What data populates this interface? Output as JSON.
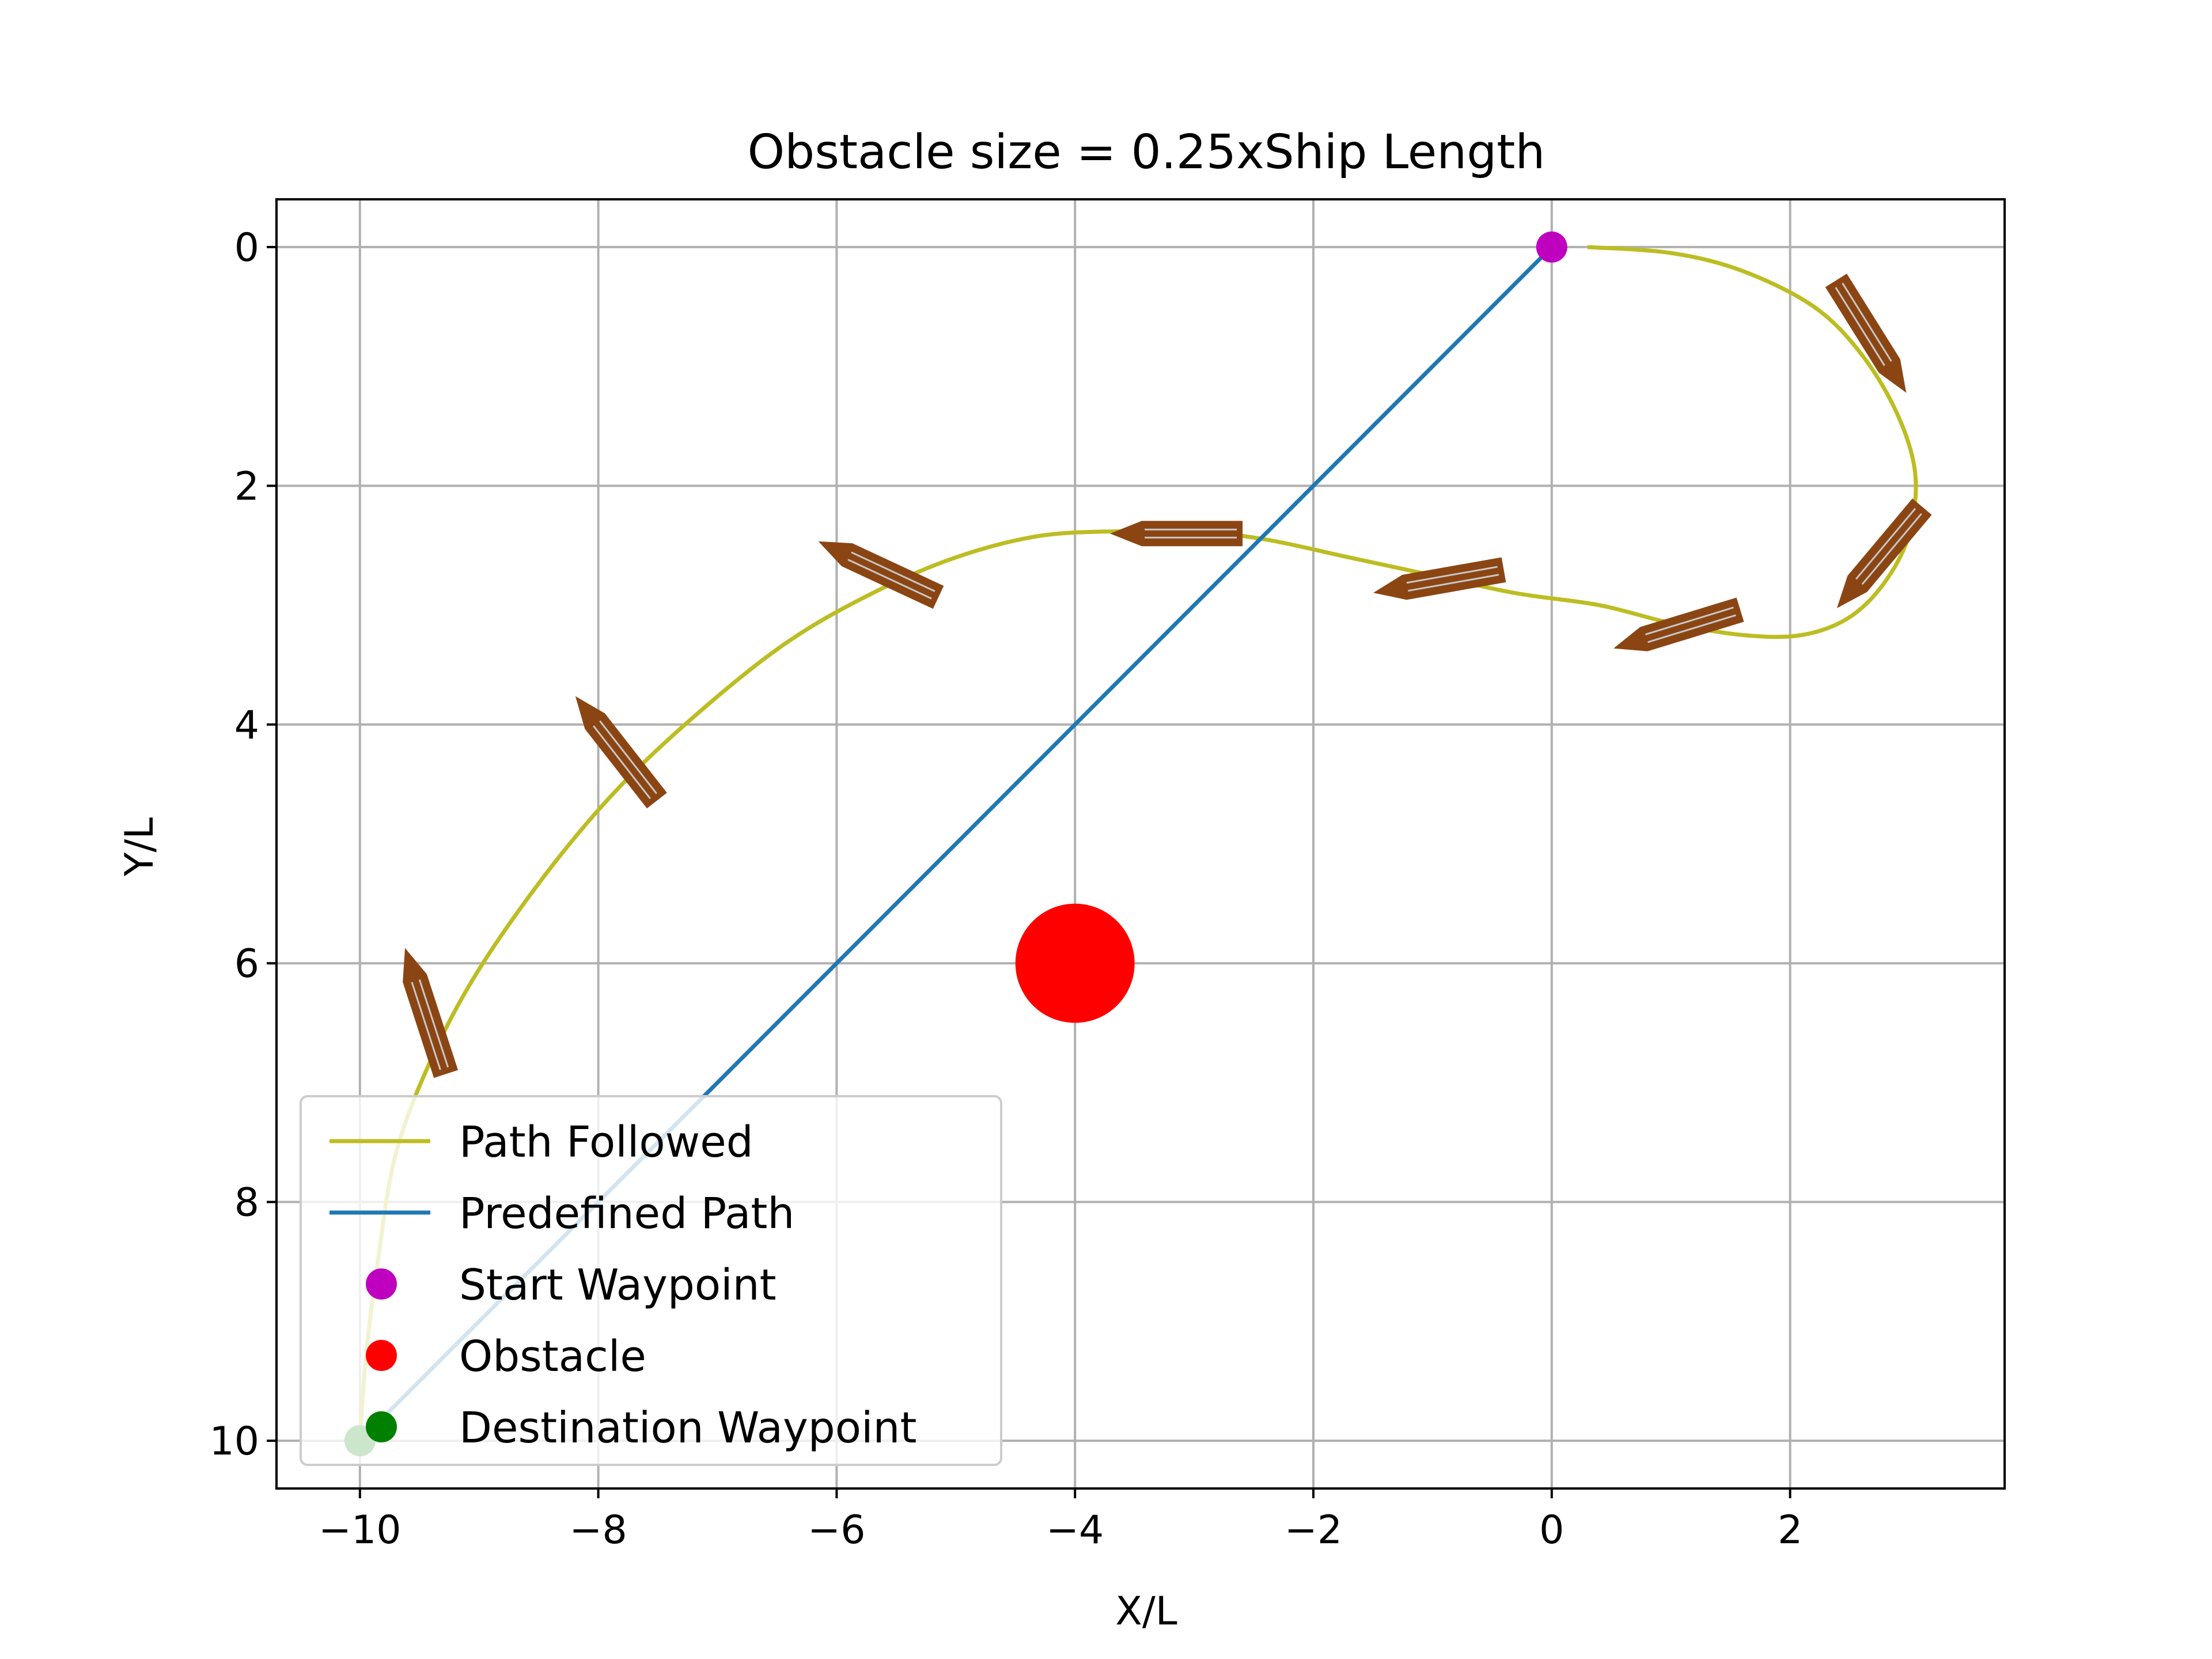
{
  "chart_data": {
    "type": "line",
    "title": "Obstacle size = 0.25xShip Length",
    "xlabel": "X/L",
    "ylabel": "Y/L",
    "xlim": [
      -10.7,
      3.8
    ],
    "ylim": [
      10.4,
      -0.4
    ],
    "y_inverted": true,
    "grid": true,
    "legend_position": "lower-left",
    "xticks": [
      -10,
      -8,
      -6,
      -4,
      -2,
      0,
      2
    ],
    "xtick_labels": [
      "−10",
      "−8",
      "−6",
      "−4",
      "−2",
      "0",
      "2"
    ],
    "yticks": [
      0,
      2,
      4,
      6,
      8,
      10
    ],
    "ytick_labels": [
      "0",
      "2",
      "4",
      "6",
      "8",
      "10"
    ],
    "colors": {
      "path_followed": "#bcbd22",
      "predefined_path": "#1f77b4",
      "start": "#bf00bf",
      "obstacle": "#ff0000",
      "destination": "#008000",
      "ship_fill": "#8b4513",
      "ship_line": "#c8c8c8",
      "grid": "#b0b0b0"
    },
    "series": [
      {
        "name": "Path Followed",
        "style": "line",
        "color": "#bcbd22",
        "x": [
          0.3,
          1.0,
          1.6,
          2.2,
          2.6,
          2.9,
          3.05,
          3.0,
          2.8,
          2.5,
          2.1,
          1.6,
          1.0,
          0.4,
          -0.3,
          -1.0,
          -1.7,
          -2.4,
          -3.0,
          -3.6,
          -4.3,
          -5.0,
          -5.7,
          -6.4,
          -7.1,
          -7.8,
          -8.4,
          -9.0,
          -9.4,
          -9.7,
          -9.85,
          -9.95,
          -10.0
        ],
        "y": [
          0.0,
          0.05,
          0.2,
          0.5,
          0.9,
          1.4,
          1.9,
          2.4,
          2.8,
          3.1,
          3.25,
          3.25,
          3.15,
          3.0,
          2.9,
          2.75,
          2.6,
          2.45,
          2.38,
          2.38,
          2.42,
          2.6,
          2.9,
          3.3,
          3.85,
          4.5,
          5.2,
          6.05,
          6.8,
          7.6,
          8.5,
          9.3,
          10.0
        ]
      },
      {
        "name": "Predefined Path",
        "style": "line",
        "color": "#1f77b4",
        "x": [
          0,
          -10
        ],
        "y": [
          0,
          10
        ]
      },
      {
        "name": "Start Waypoint",
        "style": "marker",
        "color": "#bf00bf",
        "x": [
          0
        ],
        "y": [
          0
        ]
      },
      {
        "name": "Obstacle",
        "style": "marker",
        "color": "#ff0000",
        "x": [
          -4
        ],
        "y": [
          6
        ],
        "radius": 0.5
      },
      {
        "name": "Destination Waypoint",
        "style": "marker",
        "color": "#008000",
        "x": [
          -10
        ],
        "y": [
          10
        ]
      }
    ],
    "ships": [
      {
        "x": 2.68,
        "y": 0.75,
        "heading_deg": 58
      },
      {
        "x": 2.75,
        "y": 2.6,
        "heading_deg": 130
      },
      {
        "x": 1.05,
        "y": 3.2,
        "heading_deg": 163
      },
      {
        "x": -0.95,
        "y": 2.8,
        "heading_deg": 170
      },
      {
        "x": -3.15,
        "y": 2.4,
        "heading_deg": 180
      },
      {
        "x": -5.65,
        "y": 2.7,
        "heading_deg": 205
      },
      {
        "x": -7.85,
        "y": 4.2,
        "heading_deg": 232
      },
      {
        "x": -9.45,
        "y": 6.4,
        "heading_deg": 252
      }
    ]
  }
}
